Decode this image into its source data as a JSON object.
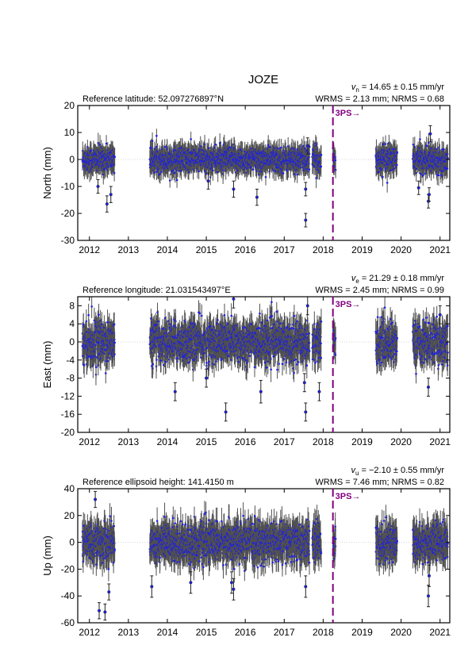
{
  "station": "JOZE",
  "colors": {
    "point": "#1f1fe6",
    "errorbar": "#505050",
    "marker": "#800080",
    "zeroline": "#c8c8c8"
  },
  "x_ticks": [
    "2012",
    "2013",
    "2014",
    "2015",
    "2016",
    "2017",
    "2018",
    "2019",
    "2020",
    "2021"
  ],
  "chart_data": [
    {
      "type": "scatter",
      "component": "north",
      "ylabel": "North (mm)",
      "reference_text": "Reference latitude: 52.097276897°N",
      "velocity_sub": "n",
      "velocity_text": " = 14.65 ± 0.15 mm/yr",
      "wrms_text": "WRMS = 2.13 mm; NRMS = 0.68",
      "xlim": [
        2011.7,
        2021.25
      ],
      "ylim": [
        -30,
        20
      ],
      "yticks": [
        -30,
        -20,
        -10,
        0,
        10,
        20
      ],
      "marker": {
        "x": 2018.25,
        "label": "3PS→"
      },
      "segments": [
        [
          2011.82,
          2012.65
        ],
        [
          2013.55,
          2017.65
        ],
        [
          2017.72,
          2017.95
        ],
        [
          2018.25,
          2018.32
        ],
        [
          2019.35,
          2019.9
        ],
        [
          2020.3,
          2021.2
        ]
      ],
      "noise": {
        "sd": 2.3,
        "err": 3.2
      },
      "outliers": [
        {
          "x": 2012.22,
          "y": -10,
          "e": 2.5
        },
        {
          "x": 2012.45,
          "y": -16.5,
          "e": 3.0
        },
        {
          "x": 2012.55,
          "y": -13,
          "e": 3.0
        },
        {
          "x": 2015.05,
          "y": -8,
          "e": 3.0
        },
        {
          "x": 2015.7,
          "y": -11,
          "e": 3.0
        },
        {
          "x": 2016.3,
          "y": -14,
          "e": 3.0
        },
        {
          "x": 2017.55,
          "y": -22.5,
          "e": 2.5
        },
        {
          "x": 2017.55,
          "y": -11,
          "e": 2.5
        },
        {
          "x": 2017.6,
          "y": 5,
          "e": 3.0
        },
        {
          "x": 2020.45,
          "y": -10.5,
          "e": 2.5
        },
        {
          "x": 2020.7,
          "y": -15.5,
          "e": 2.5
        },
        {
          "x": 2020.75,
          "y": 9.5,
          "e": 3.0
        },
        {
          "x": 2020.72,
          "y": -13,
          "e": 2.5
        }
      ]
    },
    {
      "type": "scatter",
      "component": "east",
      "ylabel": "East (mm)",
      "reference_text": "Reference longitude: 21.031543497°E",
      "velocity_sub": "e",
      "velocity_text": " = 21.29 ± 0.18 mm/yr",
      "wrms_text": "WRMS = 2.45 mm; NRMS = 0.99",
      "xlim": [
        2011.7,
        2021.25
      ],
      "ylim": [
        -20,
        10
      ],
      "yticks": [
        -20,
        -16,
        -12,
        -8,
        -4,
        0,
        4,
        8
      ],
      "marker": {
        "x": 2018.25,
        "label": "3PS→"
      },
      "segments": [
        [
          2011.82,
          2012.65
        ],
        [
          2013.55,
          2017.65
        ],
        [
          2017.72,
          2017.95
        ],
        [
          2018.25,
          2018.32
        ],
        [
          2019.35,
          2019.9
        ],
        [
          2020.3,
          2021.2
        ]
      ],
      "noise": {
        "sd": 2.3,
        "err": 2.4
      },
      "outliers": [
        {
          "x": 2014.2,
          "y": -11,
          "e": 2.0
        },
        {
          "x": 2015.0,
          "y": -8,
          "e": 2.0
        },
        {
          "x": 2015.5,
          "y": -15.5,
          "e": 2.0
        },
        {
          "x": 2015.7,
          "y": 9.5,
          "e": 2.0
        },
        {
          "x": 2016.4,
          "y": -11,
          "e": 2.5
        },
        {
          "x": 2017.55,
          "y": -15.5,
          "e": 2.0
        },
        {
          "x": 2017.52,
          "y": -9,
          "e": 2.0
        },
        {
          "x": 2017.6,
          "y": 8,
          "e": 2.0
        },
        {
          "x": 2017.9,
          "y": -11,
          "e": 2.0
        },
        {
          "x": 2020.7,
          "y": -10,
          "e": 2.0
        },
        {
          "x": 2021.0,
          "y": 6,
          "e": 2.0
        }
      ]
    },
    {
      "type": "scatter",
      "component": "up",
      "ylabel": "Up (mm)",
      "reference_text": "Reference ellipsoid height: 141.4150 m",
      "velocity_sub": "u",
      "velocity_text": " = −2.10 ± 0.55 mm/yr",
      "wrms_text": "WRMS = 7.46 mm; NRMS = 0.82",
      "xlim": [
        2011.7,
        2021.25
      ],
      "ylim": [
        -60,
        40
      ],
      "yticks": [
        -60,
        -40,
        -20,
        0,
        20,
        40
      ],
      "marker": {
        "x": 2018.25,
        "label": "3PS→"
      },
      "segments": [
        [
          2011.82,
          2012.65
        ],
        [
          2013.55,
          2017.65
        ],
        [
          2017.72,
          2017.95
        ],
        [
          2018.25,
          2018.32
        ],
        [
          2019.35,
          2019.9
        ],
        [
          2020.3,
          2021.2
        ]
      ],
      "noise": {
        "sd": 7.0,
        "err": 9.0
      },
      "outliers": [
        {
          "x": 2012.15,
          "y": 32,
          "e": 6.0
        },
        {
          "x": 2012.25,
          "y": -51,
          "e": 6.0
        },
        {
          "x": 2012.4,
          "y": -52,
          "e": 6.0
        },
        {
          "x": 2012.5,
          "y": -37,
          "e": 6.0
        },
        {
          "x": 2013.6,
          "y": -33,
          "e": 8.0
        },
        {
          "x": 2014.6,
          "y": -30,
          "e": 8.0
        },
        {
          "x": 2015.65,
          "y": -30,
          "e": 8.0
        },
        {
          "x": 2015.7,
          "y": -35,
          "e": 8.0
        },
        {
          "x": 2017.55,
          "y": -33,
          "e": 8.0
        },
        {
          "x": 2020.7,
          "y": -40,
          "e": 8.0
        },
        {
          "x": 2020.72,
          "y": -25,
          "e": 8.0
        }
      ]
    }
  ]
}
